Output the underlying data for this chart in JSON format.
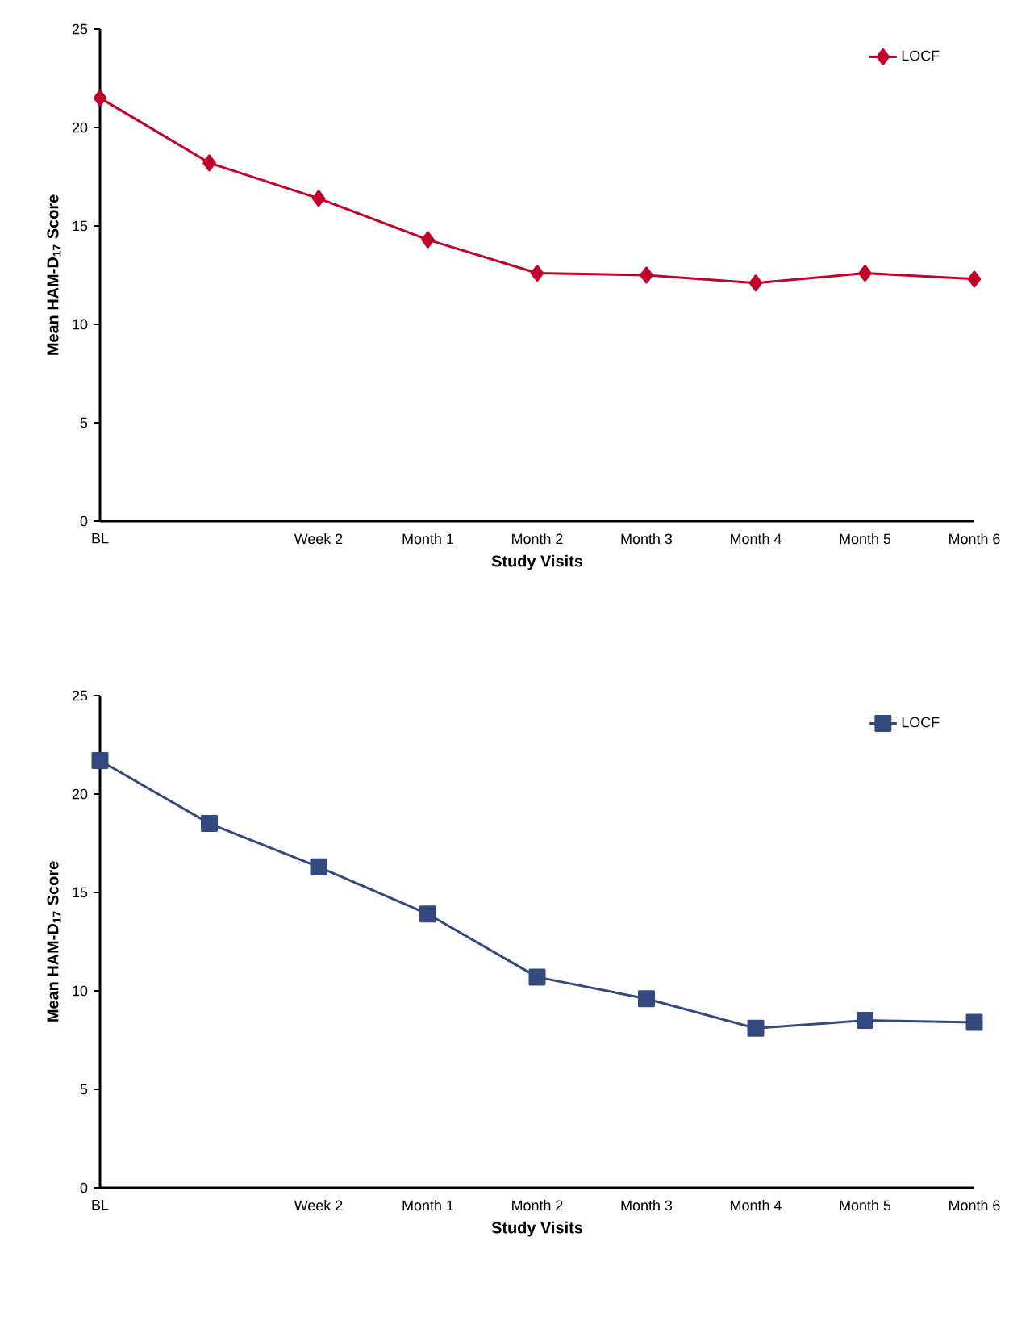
{
  "chart_data": [
    {
      "type": "line",
      "xlabel": "Study Visits",
      "ylabel": "Mean HAM-D$_{17}$ Score",
      "categories": [
        "BL",
        null,
        "Week 2",
        "Month 1",
        "Month 2",
        "Month 3",
        "Month 4",
        "Month 5",
        "Month 6"
      ],
      "series": [
        {
          "name": "LOCF",
          "color": "#c0002a",
          "values": [
            21.5,
            18.2,
            16.4,
            14.3,
            12.6,
            12.5,
            12.1,
            12.6,
            12.3
          ]
        }
      ],
      "ylim": [
        0,
        25
      ],
      "yticks": [
        0,
        5,
        10,
        15,
        20,
        25
      ],
      "legend": "top right",
      "marker": "diamond",
      "line_style": "solid"
    },
    {
      "type": "line",
      "xlabel": "Study Visits",
      "ylabel": "Mean HAM-D$_{17}$ Score",
      "categories": [
        "BL",
        null,
        "Week 2",
        "Month 1",
        "Month 2",
        "Month 3",
        "Month 4",
        "Month 5",
        "Month 6"
      ],
      "series": [
        {
          "name": "LOCF",
          "color": "#34497e",
          "values": [
            21.7,
            18.5,
            16.3,
            13.9,
            10.7,
            9.6,
            8.1,
            8.5,
            8.4
          ]
        }
      ],
      "ylim": [
        0,
        25
      ],
      "yticks": [
        0,
        5,
        10,
        15,
        20,
        25
      ],
      "legend": "top right",
      "marker": "square",
      "line_style": "solid"
    }
  ]
}
